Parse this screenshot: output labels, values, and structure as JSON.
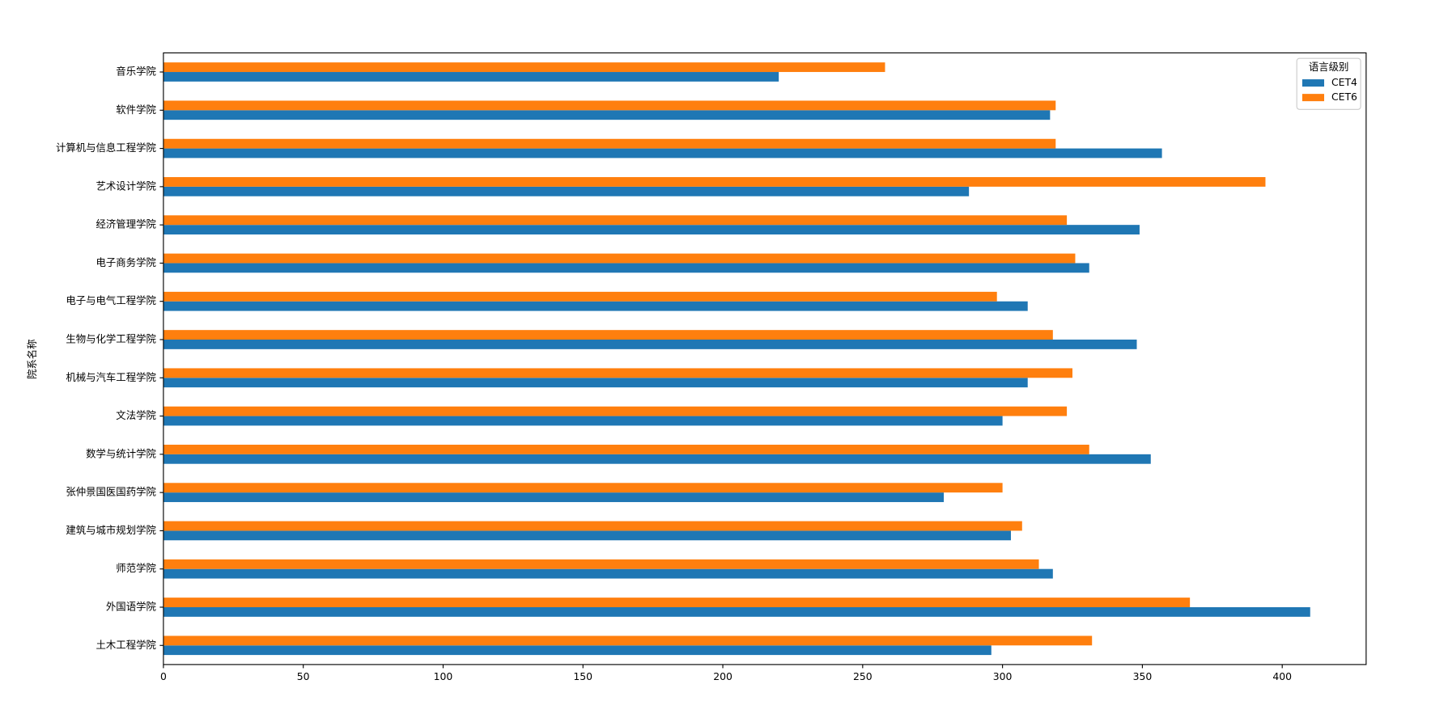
{
  "chart_data": {
    "type": "barh",
    "y_label": "院系名称",
    "categories": [
      "音乐学院",
      "软件学院",
      "计算机与信息工程学院",
      "艺术设计学院",
      "经济管理学院",
      "电子商务学院",
      "电子与电气工程学院",
      "生物与化学工程学院",
      "机械与汽车工程学院",
      "文法学院",
      "数学与统计学院",
      "张仲景国医国药学院",
      "建筑与城市规划学院",
      "师范学院",
      "外国语学院",
      "土木工程学院"
    ],
    "series": [
      {
        "name": "CET4",
        "color": "#1f77b4",
        "values": [
          220,
          317,
          357,
          288,
          349,
          331,
          309,
          348,
          309,
          300,
          353,
          279,
          303,
          318,
          410,
          296
        ]
      },
      {
        "name": "CET6",
        "color": "#ff7f0e",
        "values": [
          258,
          319,
          319,
          394,
          323,
          326,
          298,
          318,
          325,
          323,
          331,
          300,
          307,
          313,
          367,
          332
        ]
      }
    ],
    "xlim": [
      0,
      430
    ],
    "xticks": [
      0,
      50,
      100,
      150,
      200,
      250,
      300,
      350,
      400
    ],
    "legend_title": "语言级别",
    "legend": "upper right",
    "grid": false
  }
}
